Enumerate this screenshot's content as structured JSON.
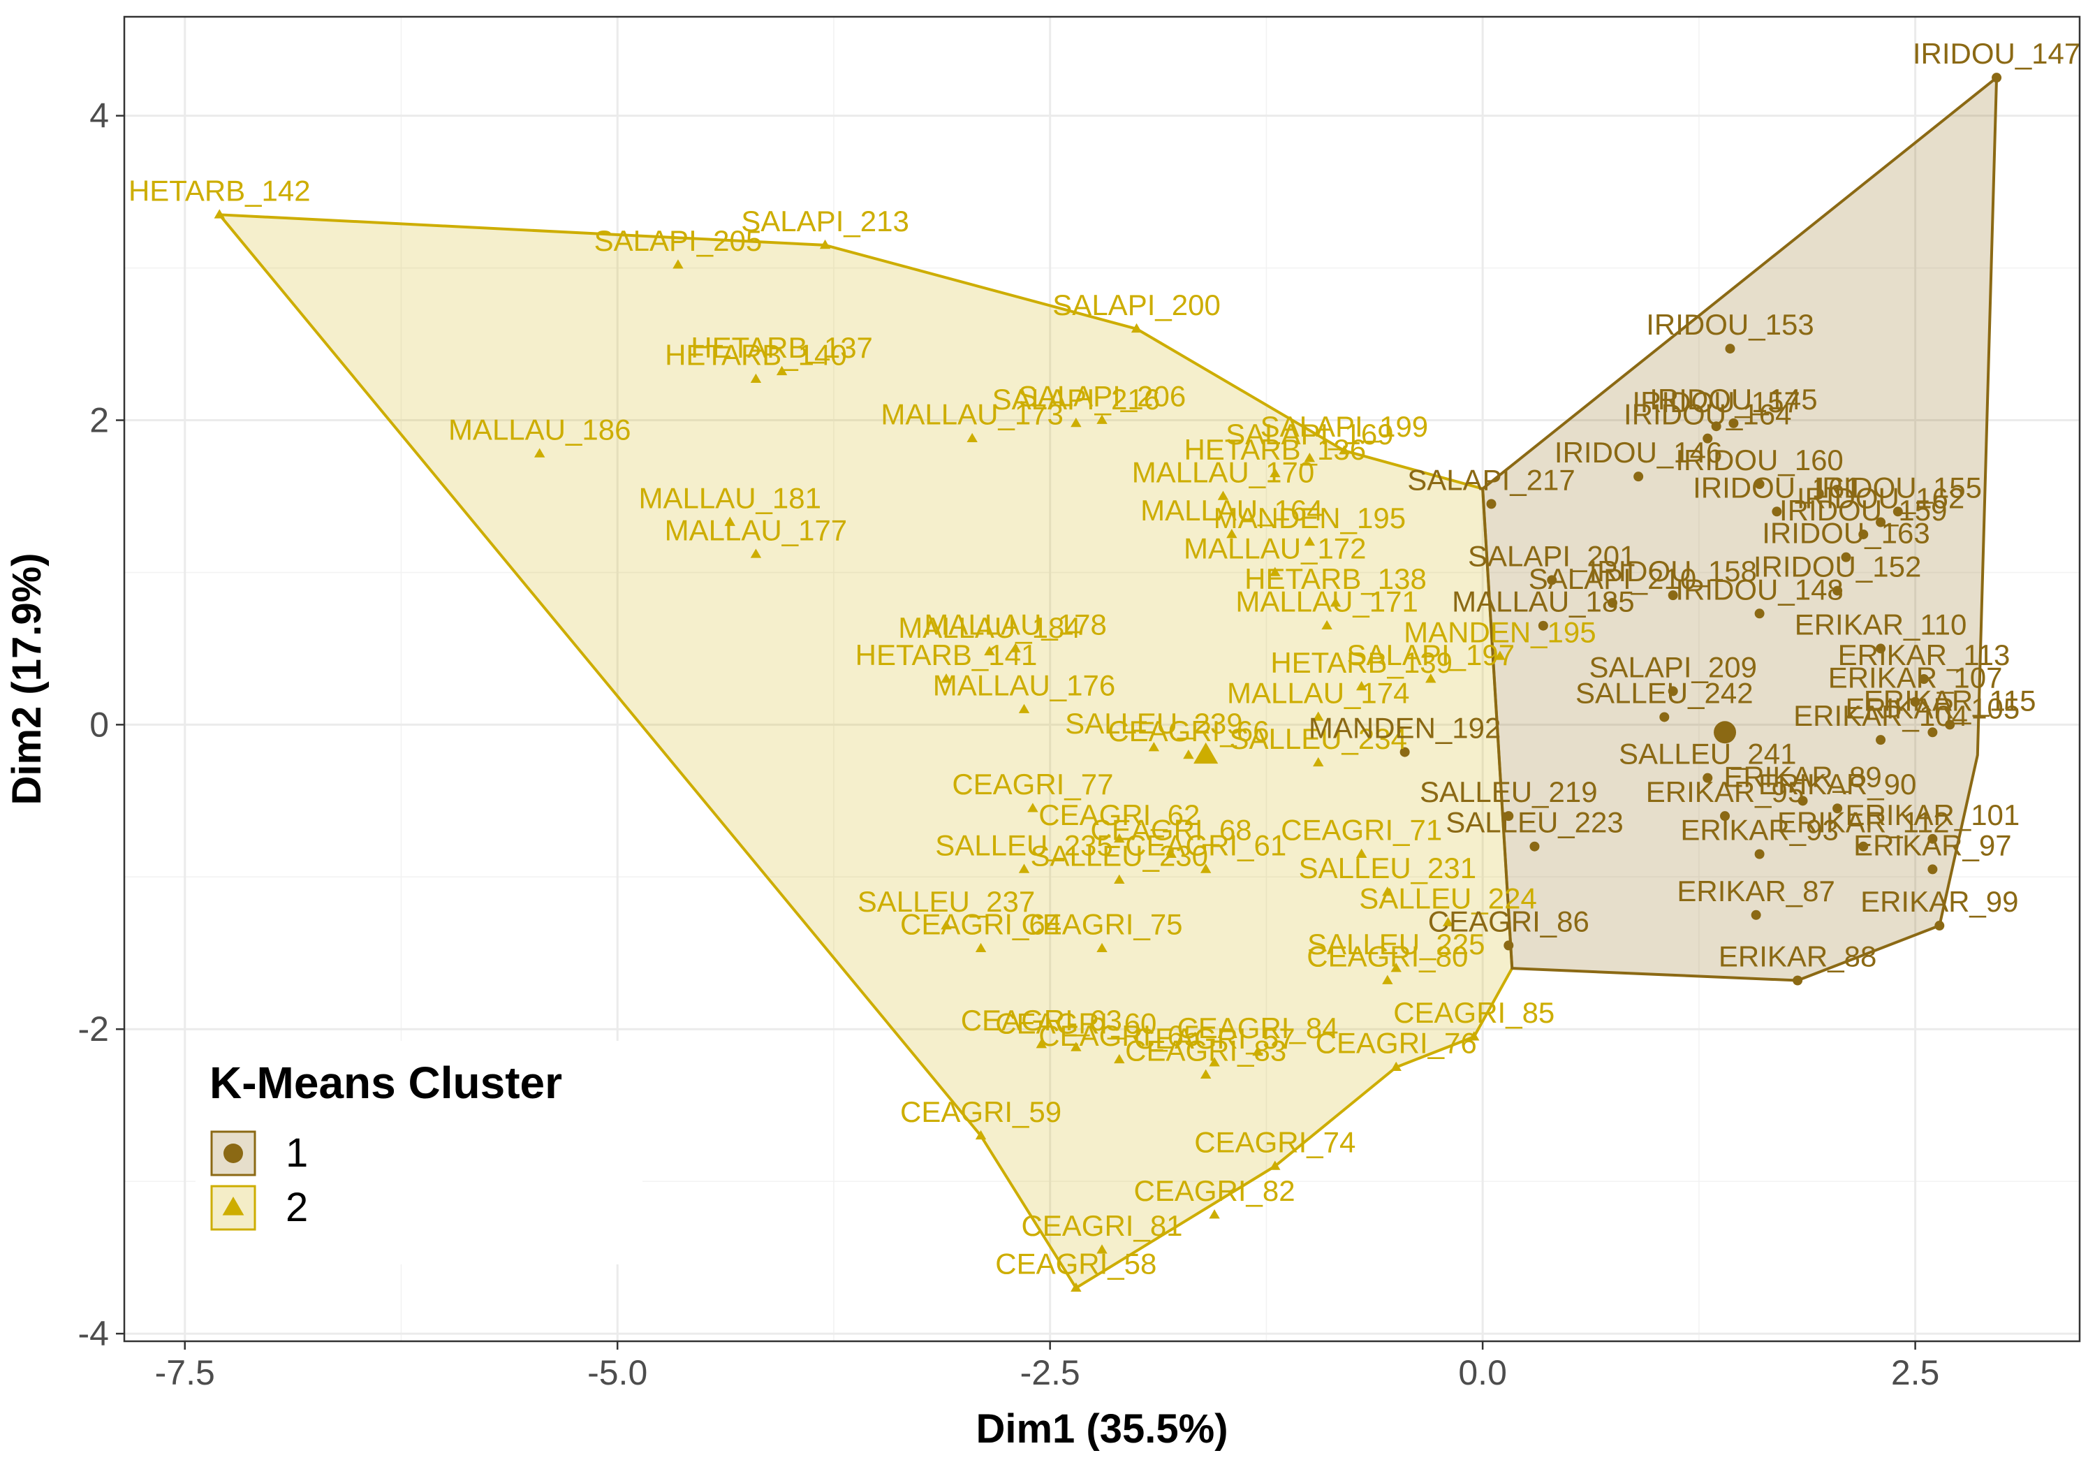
{
  "chart_data": {
    "type": "scatter",
    "xlabel": "Dim1 (35.5%)",
    "ylabel": "Dim2 (17.9%)",
    "xlim": [
      -7.85,
      3.45
    ],
    "ylim": [
      -4.05,
      4.65
    ],
    "xticks": [
      -7.5,
      -5.0,
      -2.5,
      0.0,
      2.5
    ],
    "xtick_labels": [
      "-7.5",
      "-5.0",
      "-2.5",
      "0.0",
      "2.5"
    ],
    "yticks": [
      -4,
      -2,
      0,
      2,
      4
    ],
    "ytick_labels": [
      "-4",
      "-2",
      "0",
      "2",
      "4"
    ],
    "grid": true,
    "legend": {
      "title": "K-Means Cluster",
      "position": "bottom-left",
      "entries": [
        "1",
        "2"
      ]
    },
    "colors": {
      "1": "#8B6914",
      "2": "#CDAD00"
    },
    "series": [
      {
        "cluster": "1",
        "marker": "circle",
        "hull": [
          [
            2.97,
            4.25
          ],
          [
            2.86,
            -0.2
          ],
          [
            2.64,
            -1.32
          ],
          [
            1.82,
            -1.68
          ],
          [
            0.17,
            -1.6
          ],
          [
            0.0,
            1.55
          ]
        ],
        "centroid": [
          1.4,
          -0.05
        ],
        "points": [
          {
            "label": "IRIDOU_147",
            "x": 2.97,
            "y": 4.25
          },
          {
            "label": "IRIDOU_153",
            "x": 1.43,
            "y": 2.47
          },
          {
            "label": "IRIDOU_157",
            "x": 1.35,
            "y": 1.96
          },
          {
            "label": "IRIDOU_164",
            "x": 1.3,
            "y": 1.88
          },
          {
            "label": "IRIDOU_145",
            "x": 1.45,
            "y": 1.98
          },
          {
            "label": "IRIDOU_146",
            "x": 0.9,
            "y": 1.63
          },
          {
            "label": "IRIDOU_160",
            "x": 1.6,
            "y": 1.58
          },
          {
            "label": "IRIDOU_162",
            "x": 2.3,
            "y": 1.33
          },
          {
            "label": "IRIDOU_159",
            "x": 2.2,
            "y": 1.25
          },
          {
            "label": "IRIDOU_155",
            "x": 2.4,
            "y": 1.4
          },
          {
            "label": "IRIDOU_161",
            "x": 1.7,
            "y": 1.4
          },
          {
            "label": "IRIDOU_163",
            "x": 2.1,
            "y": 1.1
          },
          {
            "label": "IRIDOU_152",
            "x": 2.05,
            "y": 0.88
          },
          {
            "label": "IRIDOU_148",
            "x": 1.6,
            "y": 0.73
          },
          {
            "label": "IRIDOU_158",
            "x": 1.1,
            "y": 0.85
          },
          {
            "label": "SALAPI_217",
            "x": 0.05,
            "y": 1.45
          },
          {
            "label": "SALAPI_201",
            "x": 0.4,
            "y": 0.95
          },
          {
            "label": "SALAPI_210",
            "x": 0.75,
            "y": 0.8
          },
          {
            "label": "SALAPI_209",
            "x": 1.1,
            "y": 0.22
          },
          {
            "label": "MALLAU_185",
            "x": 0.35,
            "y": 0.65
          },
          {
            "label": "MANDEN_192",
            "x": -0.45,
            "y": -0.18
          },
          {
            "label": "SALLEU_242",
            "x": 1.05,
            "y": 0.05
          },
          {
            "label": "SALLEU_241",
            "x": 1.3,
            "y": -0.35
          },
          {
            "label": "SALLEU_219",
            "x": 0.15,
            "y": -0.6
          },
          {
            "label": "SALLEU_223",
            "x": 0.3,
            "y": -0.8
          },
          {
            "label": "CEAGRI_86",
            "x": 0.15,
            "y": -1.45
          },
          {
            "label": "ERIKAR_110",
            "x": 2.3,
            "y": 0.5
          },
          {
            "label": "ERIKAR_113",
            "x": 2.55,
            "y": 0.3
          },
          {
            "label": "ERIKAR_107",
            "x": 2.5,
            "y": 0.15
          },
          {
            "label": "ERIKAR_115",
            "x": 2.7,
            "y": 0.0
          },
          {
            "label": "ERIKAR_105",
            "x": 2.6,
            "y": -0.05
          },
          {
            "label": "ERIKAR_104",
            "x": 2.3,
            "y": -0.1
          },
          {
            "label": "ERIKAR_89",
            "x": 1.85,
            "y": -0.5
          },
          {
            "label": "ERIKAR_90",
            "x": 2.05,
            "y": -0.55
          },
          {
            "label": "ERIKAR_95",
            "x": 1.4,
            "y": -0.6
          },
          {
            "label": "ERIKAR_112",
            "x": 2.2,
            "y": -0.8
          },
          {
            "label": "ERIKAR_101",
            "x": 2.6,
            "y": -0.75
          },
          {
            "label": "ERIKAR_97",
            "x": 2.6,
            "y": -0.95
          },
          {
            "label": "ERIKAR_99",
            "x": 2.64,
            "y": -1.32
          },
          {
            "label": "ERIKAR_87",
            "x": 1.58,
            "y": -1.25
          },
          {
            "label": "ERIKAR_88",
            "x": 1.82,
            "y": -1.68
          },
          {
            "label": "ERIKAR_93",
            "x": 1.6,
            "y": -0.85
          }
        ]
      },
      {
        "cluster": "2",
        "marker": "triangle",
        "hull": [
          [
            -7.3,
            3.35
          ],
          [
            -3.8,
            3.15
          ],
          [
            -2.0,
            2.6
          ],
          [
            -0.8,
            1.8
          ],
          [
            0.0,
            1.55
          ],
          [
            0.17,
            -1.6
          ],
          [
            -0.05,
            -2.05
          ],
          [
            -0.5,
            -2.25
          ],
          [
            -1.2,
            -2.9
          ],
          [
            -2.35,
            -3.7
          ],
          [
            -2.9,
            -2.7
          ]
        ],
        "centroid": [
          -1.6,
          -0.2
        ],
        "points": [
          {
            "label": "HETARB_142",
            "x": -7.3,
            "y": 3.35
          },
          {
            "label": "SALAPI_205",
            "x": -4.65,
            "y": 3.02
          },
          {
            "label": "SALAPI_213",
            "x": -3.8,
            "y": 3.15
          },
          {
            "label": "SALAPI_200",
            "x": -2.0,
            "y": 2.6
          },
          {
            "label": "HETARB_137",
            "x": -4.05,
            "y": 2.32
          },
          {
            "label": "HETARB_140",
            "x": -4.2,
            "y": 2.27
          },
          {
            "label": "MALLAU_186",
            "x": -5.45,
            "y": 1.78
          },
          {
            "label": "MALLAU_173",
            "x": -2.95,
            "y": 1.88
          },
          {
            "label": "SALAPI_206",
            "x": -2.2,
            "y": 2.0
          },
          {
            "label": "SALAPI_216",
            "x": -2.35,
            "y": 1.98
          },
          {
            "label": "SALAPI_199",
            "x": -0.8,
            "y": 1.8
          },
          {
            "label": "SALAPI_169",
            "x": -1.0,
            "y": 1.75
          },
          {
            "label": "HETARB_136",
            "x": -1.2,
            "y": 1.65
          },
          {
            "label": "MALLAU_170",
            "x": -1.5,
            "y": 1.5
          },
          {
            "label": "MALLAU_181",
            "x": -4.35,
            "y": 1.33
          },
          {
            "label": "MALLAU_177",
            "x": -4.2,
            "y": 1.12
          },
          {
            "label": "MALLAU_164",
            "x": -1.45,
            "y": 1.25
          },
          {
            "label": "MANDEN_195",
            "x": -1.0,
            "y": 1.2
          },
          {
            "label": "MALLAU_172",
            "x": -1.2,
            "y": 1.0
          },
          {
            "label": "HETARB_138",
            "x": -0.85,
            "y": 0.8
          },
          {
            "label": "MALLAU_171",
            "x": -0.9,
            "y": 0.65
          },
          {
            "label": "MALLAU_178",
            "x": -2.7,
            "y": 0.5
          },
          {
            "label": "HETARB_141",
            "x": -3.1,
            "y": 0.3
          },
          {
            "label": "MALLAU_184",
            "x": -2.85,
            "y": 0.48
          },
          {
            "label": "MALLAU_176",
            "x": -2.65,
            "y": 0.1
          },
          {
            "label": "HETARB_139",
            "x": -0.7,
            "y": 0.25
          },
          {
            "label": "SALAPI_197",
            "x": -0.3,
            "y": 0.3
          },
          {
            "label": "MANDEN_195",
            "x": 0.1,
            "y": 0.45
          },
          {
            "label": "MALLAU_174",
            "x": -0.95,
            "y": 0.05
          },
          {
            "label": "SALLEU_239",
            "x": -1.9,
            "y": -0.15
          },
          {
            "label": "CEAGRI_66",
            "x": -1.7,
            "y": -0.2
          },
          {
            "label": "SALLEU_234",
            "x": -0.95,
            "y": -0.25
          },
          {
            "label": "CEAGRI_77",
            "x": -2.6,
            "y": -0.55
          },
          {
            "label": "CEAGRI_62",
            "x": -2.1,
            "y": -0.75
          },
          {
            "label": "CEAGRI_68",
            "x": -1.8,
            "y": -0.85
          },
          {
            "label": "SALLEU_235",
            "x": -2.65,
            "y": -0.95
          },
          {
            "label": "SALLEU_230",
            "x": -2.1,
            "y": -1.02
          },
          {
            "label": "CEAGRI_61",
            "x": -1.6,
            "y": -0.95
          },
          {
            "label": "CEAGRI_71",
            "x": -0.7,
            "y": -0.85
          },
          {
            "label": "SALLEU_237",
            "x": -3.1,
            "y": -1.32
          },
          {
            "label": "CEAGRI_64",
            "x": -2.9,
            "y": -1.47
          },
          {
            "label": "CEAGRI_75",
            "x": -2.2,
            "y": -1.47
          },
          {
            "label": "SALLEU_231",
            "x": -0.55,
            "y": -1.1
          },
          {
            "label": "SALLEU_224",
            "x": -0.2,
            "y": -1.3
          },
          {
            "label": "SALLEU_225",
            "x": -0.5,
            "y": -1.6
          },
          {
            "label": "CEAGRI_80",
            "x": -0.55,
            "y": -1.68
          },
          {
            "label": "CEAGRI_60",
            "x": -2.35,
            "y": -2.12
          },
          {
            "label": "CEAGRI_63",
            "x": -2.55,
            "y": -2.1
          },
          {
            "label": "CEAGRI_65",
            "x": -2.1,
            "y": -2.2
          },
          {
            "label": "CEAGRI_57",
            "x": -1.55,
            "y": -2.22
          },
          {
            "label": "CEAGRI_83",
            "x": -1.6,
            "y": -2.3
          },
          {
            "label": "CEAGRI_84",
            "x": -1.3,
            "y": -2.15
          },
          {
            "label": "CEAGRI_85",
            "x": -0.05,
            "y": -2.05
          },
          {
            "label": "CEAGRI_76",
            "x": -0.5,
            "y": -2.25
          },
          {
            "label": "CEAGRI_59",
            "x": -2.9,
            "y": -2.7
          },
          {
            "label": "CEAGRI_74",
            "x": -1.2,
            "y": -2.9
          },
          {
            "label": "CEAGRI_82",
            "x": -1.55,
            "y": -3.22
          },
          {
            "label": "CEAGRI_81",
            "x": -2.2,
            "y": -3.45
          },
          {
            "label": "CEAGRI_58",
            "x": -2.35,
            "y": -3.7
          }
        ]
      }
    ]
  }
}
